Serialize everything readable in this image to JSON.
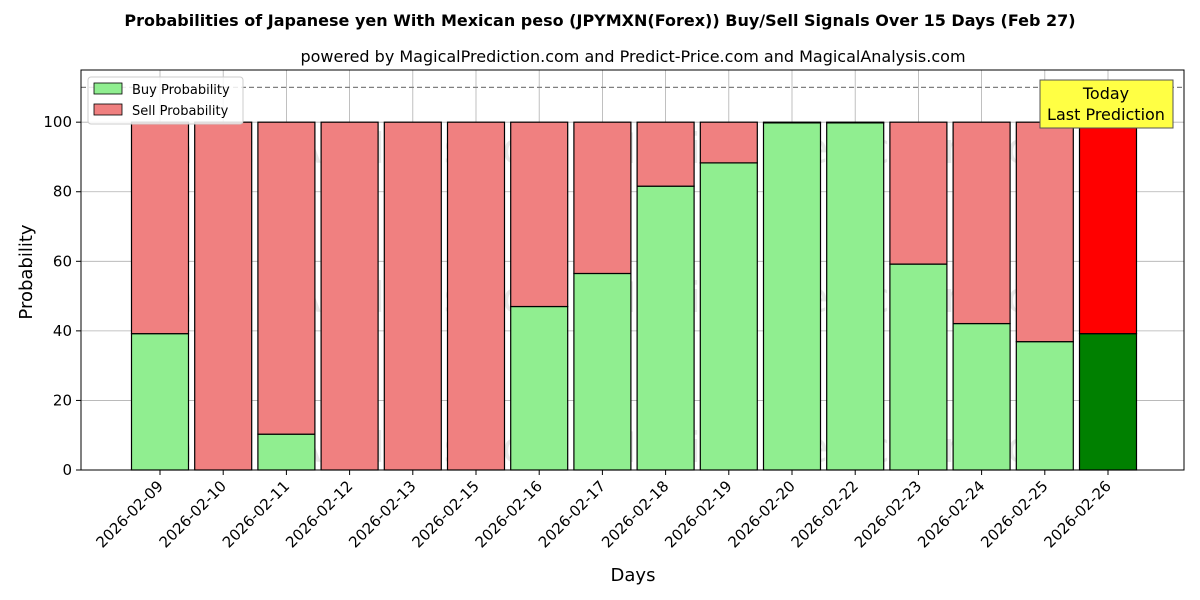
{
  "chart_data": {
    "type": "bar",
    "stacked": true,
    "title": "Probabilities of Japanese yen With Mexican peso (JPYMXN(Forex)) Buy/Sell Signals Over 15 Days (Feb 27)",
    "subtitle": "powered by MagicalPrediction.com and Predict-Price.com and MagicalAnalysis.com",
    "xlabel": "Days",
    "ylabel": "Probability",
    "ylim": [
      0,
      115
    ],
    "yticks": [
      0,
      20,
      40,
      60,
      80,
      100
    ],
    "reference_line": 110,
    "grid": true,
    "legend_position": "top-left",
    "categories": [
      "2026-02-09",
      "2026-02-10",
      "2026-02-11",
      "2026-02-12",
      "2026-02-13",
      "2026-02-15",
      "2026-02-16",
      "2026-02-17",
      "2026-02-18",
      "2026-02-19",
      "2026-02-20",
      "2026-02-22",
      "2026-02-23",
      "2026-02-24",
      "2026-02-25",
      "2026-02-26"
    ],
    "series": [
      {
        "name": "Buy Probability",
        "color": "#90EE90",
        "highlight_color": "#008000",
        "values": [
          39.2,
          0,
          10.3,
          0,
          0,
          0,
          47.0,
          56.5,
          81.6,
          88.3,
          99.8,
          99.8,
          59.2,
          42.1,
          36.9,
          39.2
        ]
      },
      {
        "name": "Sell Probability",
        "color": "#F08080",
        "highlight_color": "#FF0000",
        "values": [
          60.8,
          100,
          89.7,
          100,
          100,
          100,
          53.0,
          43.5,
          18.4,
          11.7,
          0.2,
          0.2,
          40.8,
          57.9,
          63.1,
          60.8
        ]
      }
    ],
    "highlight_index": 15,
    "annotation": {
      "line1": "Today",
      "line2": "Last Prediction",
      "color": "#FFFF44"
    },
    "watermarks": [
      "MagicalAnalysis.com",
      "MagicalPrediction.com"
    ]
  }
}
